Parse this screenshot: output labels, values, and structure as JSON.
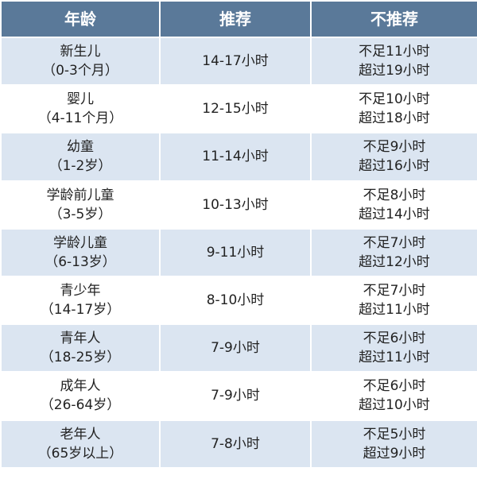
{
  "table": {
    "header": [
      "年龄",
      "推荐",
      "不推荐"
    ],
    "rows": [
      {
        "age": [
          "新生儿",
          "（0-3个月）"
        ],
        "recommended": "14-17小时",
        "not_recommended": [
          "不足11小时",
          "超过19小时"
        ]
      },
      {
        "age": [
          "婴儿",
          "（4-11个月）"
        ],
        "recommended": "12-15小时",
        "not_recommended": [
          "不足10小时",
          "超过18小时"
        ]
      },
      {
        "age": [
          "幼童",
          "（1-2岁）"
        ],
        "recommended": "11-14小时",
        "not_recommended": [
          "不足9小时",
          "超过16小时"
        ]
      },
      {
        "age": [
          "学龄前儿童",
          "（3-5岁）"
        ],
        "recommended": "10-13小时",
        "not_recommended": [
          "不足8小时",
          "超过14小时"
        ]
      },
      {
        "age": [
          "学龄儿童",
          "（6-13岁）"
        ],
        "recommended": "9-11小时",
        "not_recommended": [
          "不足7小时",
          "超过12小时"
        ]
      },
      {
        "age": [
          "青少年",
          "（14-17岁）"
        ],
        "recommended": "8-10小时",
        "not_recommended": [
          "不足7小时",
          "超过11小时"
        ]
      },
      {
        "age": [
          "青年人",
          "（18-25岁）"
        ],
        "recommended": "7-9小时",
        "not_recommended": [
          "不足6小时",
          "超过11小时"
        ]
      },
      {
        "age": [
          "成年人",
          "（26-64岁）"
        ],
        "recommended": "7-9小时",
        "not_recommended": [
          "不足6小时",
          "超过10小时"
        ]
      },
      {
        "age": [
          "老年人",
          "（65岁以上）"
        ],
        "recommended": "7-8小时",
        "not_recommended": [
          "不足5小时",
          "超过9小时"
        ]
      }
    ]
  }
}
